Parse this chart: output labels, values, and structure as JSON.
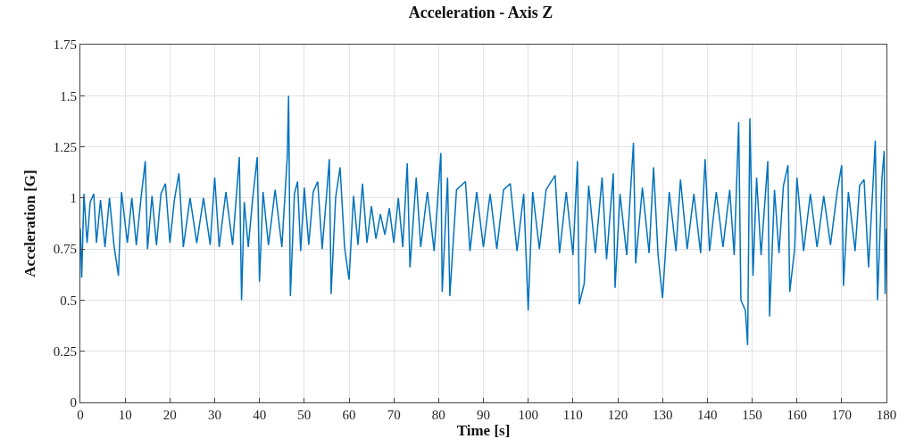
{
  "chart_data": {
    "type": "line",
    "title": "Acceleration - Axis Z",
    "xlabel": "Time [s]",
    "ylabel": "Acceleration [G]",
    "x": [
      0,
      0.3,
      0.8,
      1.5,
      2.2,
      3,
      3.6,
      4.5,
      5.5,
      6.5,
      7.5,
      8.5,
      9.2,
      10.5,
      11.5,
      12.5,
      13.5,
      14.5,
      15,
      16,
      17,
      18,
      19,
      20,
      21,
      22,
      23,
      24.5,
      26,
      27.5,
      29,
      30,
      31,
      32.5,
      34,
      35.5,
      36,
      36.6,
      37.5,
      38.5,
      39.5,
      40,
      40.8,
      42,
      43.5,
      45,
      46.2,
      46.5,
      46.9,
      47.8,
      48.5,
      49.2,
      50,
      51,
      52,
      53,
      54,
      55,
      55.6,
      56,
      57,
      58,
      59,
      60,
      61,
      62,
      63,
      64,
      65,
      66,
      67,
      68,
      69,
      70,
      71,
      72,
      73,
      73.6,
      75,
      76,
      77.5,
      79,
      80.5,
      80.8,
      82,
      82.5,
      84,
      86,
      87,
      88.5,
      90,
      91.5,
      93,
      94.5,
      96,
      97.5,
      99,
      100,
      101,
      102.5,
      104,
      106,
      107,
      108.5,
      110,
      111,
      111.4,
      112.5,
      113.5,
      115,
      116.5,
      117.5,
      119,
      119.4,
      120.5,
      122,
      123.5,
      124,
      125.5,
      127,
      128,
      129,
      130,
      131.5,
      133,
      134,
      135.5,
      137,
      138.5,
      139.5,
      140.5,
      142,
      143.5,
      145,
      146,
      147,
      147.5,
      148.5,
      149,
      149.5,
      150.2,
      151,
      152,
      153.5,
      153.9,
      155,
      156,
      157,
      158,
      158.4,
      159.5,
      160,
      161.5,
      163,
      164.5,
      166,
      167.5,
      169,
      170,
      170.4,
      171.5,
      173,
      174,
      175,
      176,
      177,
      177.5,
      178,
      179,
      179.5,
      179.7,
      180
    ],
    "series": [
      {
        "color": "#0072bd",
        "values": [
          0.85,
          0.61,
          1.02,
          0.78,
          0.98,
          1.02,
          0.78,
          0.99,
          0.76,
          1.0,
          0.77,
          0.62,
          1.03,
          0.78,
          1.0,
          0.77,
          0.99,
          1.18,
          0.75,
          1.01,
          0.77,
          1.02,
          1.07,
          0.78,
          0.99,
          1.12,
          0.76,
          1.0,
          0.78,
          1.0,
          0.77,
          1.1,
          0.76,
          1.03,
          0.77,
          1.2,
          0.5,
          0.98,
          0.76,
          1.0,
          1.2,
          0.59,
          1.03,
          0.77,
          1.04,
          0.76,
          1.2,
          1.5,
          0.52,
          1.02,
          1.08,
          0.74,
          1.05,
          0.77,
          1.03,
          1.08,
          0.75,
          1.02,
          1.19,
          0.53,
          1.0,
          1.15,
          0.76,
          0.6,
          1.01,
          0.77,
          1.07,
          0.78,
          0.96,
          0.8,
          0.92,
          0.82,
          0.95,
          0.78,
          1.0,
          0.76,
          1.17,
          0.66,
          1.1,
          0.76,
          1.03,
          0.74,
          1.22,
          0.54,
          1.1,
          0.52,
          1.04,
          1.08,
          0.74,
          1.03,
          0.76,
          1.02,
          0.75,
          1.04,
          1.07,
          0.74,
          1.02,
          0.45,
          1.03,
          0.75,
          1.04,
          1.11,
          0.73,
          1.03,
          0.72,
          1.18,
          0.48,
          0.58,
          1.06,
          0.73,
          1.1,
          0.7,
          1.12,
          0.56,
          1.02,
          0.72,
          1.27,
          0.68,
          1.05,
          0.73,
          1.15,
          0.72,
          0.51,
          1.03,
          0.74,
          1.09,
          0.75,
          1.02,
          0.73,
          1.19,
          0.74,
          1.03,
          0.76,
          1.04,
          0.72,
          1.37,
          0.5,
          0.45,
          0.28,
          1.39,
          0.62,
          1.1,
          0.72,
          1.18,
          0.42,
          1.04,
          0.73,
          1.06,
          1.16,
          0.54,
          0.75,
          1.1,
          0.74,
          1.02,
          0.76,
          1.01,
          0.77,
          1.03,
          1.16,
          0.57,
          1.03,
          0.74,
          1.06,
          1.09,
          0.66,
          1.07,
          1.28,
          0.5,
          1.1,
          1.23,
          0.53,
          0.85
        ]
      }
    ],
    "xlim": [
      0,
      180
    ],
    "ylim": [
      0,
      1.75
    ],
    "xticks": [
      0,
      10,
      20,
      30,
      40,
      50,
      60,
      70,
      80,
      90,
      100,
      110,
      120,
      130,
      140,
      150,
      160,
      170,
      180
    ],
    "yticks": [
      0,
      0.25,
      0.5,
      0.75,
      1,
      1.25,
      1.5,
      1.75
    ],
    "grid": true,
    "line_style": "solid",
    "marker": "none"
  }
}
